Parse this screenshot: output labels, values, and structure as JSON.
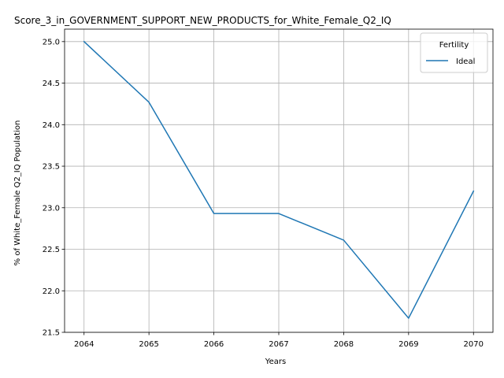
{
  "chart_data": {
    "type": "line",
    "title": "Score_3_in_GOVERNMENT_SUPPORT_NEW_PRODUCTS_for_White_Female_Q2_IQ",
    "xlabel": "Years",
    "ylabel": "% of White_Female Q2_IQ Population",
    "x": [
      2064,
      2065,
      2066,
      2067,
      2068,
      2069,
      2070
    ],
    "series": [
      {
        "name": "Ideal",
        "color": "#1f77b4",
        "values": [
          25.0,
          24.27,
          22.93,
          22.93,
          22.61,
          21.67,
          23.2
        ]
      }
    ],
    "xlim": [
      2063.7,
      2070.3
    ],
    "ylim": [
      21.5,
      25.15
    ],
    "x_ticks": [
      "2064",
      "2065",
      "2066",
      "2067",
      "2068",
      "2069",
      "2070"
    ],
    "y_ticks": [
      "21.5",
      "22.0",
      "22.5",
      "23.0",
      "23.5",
      "24.0",
      "24.5",
      "25.0"
    ],
    "grid": true,
    "legend": {
      "title": "Fertility",
      "placement": "top-right"
    }
  }
}
